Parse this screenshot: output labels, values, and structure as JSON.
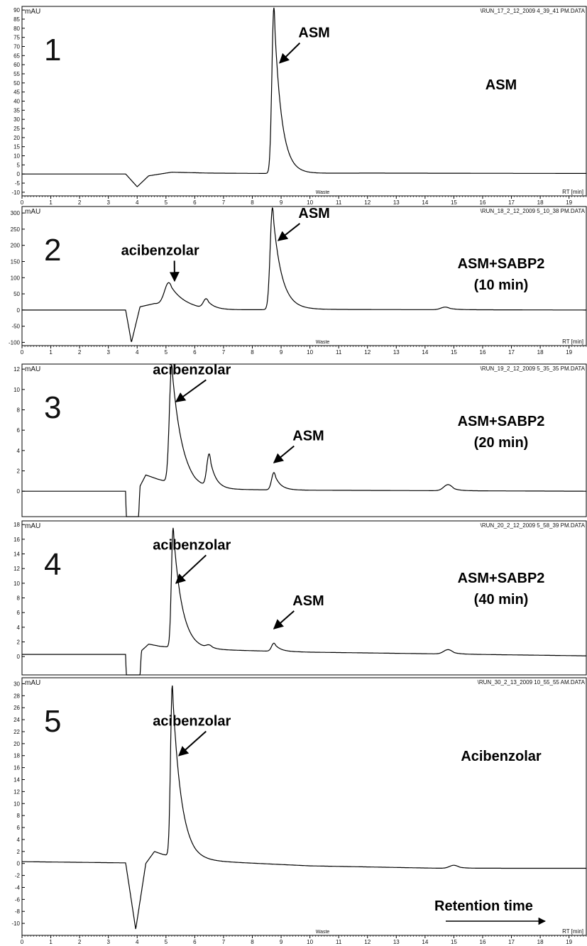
{
  "chart_data": [
    {
      "type": "line",
      "panel_number": "1",
      "y_unit": "mAU",
      "file_label": "\\RUN_17_2_12_2009 4_39_41 PM.DATA",
      "x_axis_label": "RT [min]",
      "detector_label": "Waste",
      "condition": "ASM",
      "condition_lines": [
        "ASM"
      ],
      "xlim": [
        0,
        19.6
      ],
      "ylim": [
        -12,
        92
      ],
      "y_ticks": [
        -10,
        -5,
        0,
        5,
        10,
        15,
        20,
        25,
        30,
        35,
        40,
        45,
        50,
        55,
        60,
        65,
        70,
        75,
        80,
        85,
        90
      ],
      "trace": {
        "baseline": [
          [
            0,
            0
          ],
          [
            3.6,
            0
          ],
          [
            4.0,
            -7
          ],
          [
            4.4,
            -1
          ],
          [
            5.2,
            1
          ],
          [
            6.5,
            0.5
          ],
          [
            8.5,
            0.3
          ],
          [
            12,
            0.5
          ],
          [
            19.6,
            0.3
          ]
        ],
        "peaks": [
          {
            "rt": 8.75,
            "height": 91,
            "width_left": 0.07,
            "width_right": 0.25
          }
        ]
      },
      "annotations": [
        {
          "label": "ASM",
          "x": 9.6,
          "y": 75,
          "ax": 8.95,
          "ay": 61
        }
      ]
    },
    {
      "type": "line",
      "panel_number": "2",
      "y_unit": "mAU",
      "file_label": "\\RUN_18_2_12_2009 5_10_38 PM.DATA",
      "x_axis_label": "RT [min]",
      "detector_label": "Waste",
      "condition": "ASM+SABP2 (10 min)",
      "condition_lines": [
        "ASM+SABP2",
        "(10 min)"
      ],
      "xlim": [
        0,
        19.6
      ],
      "ylim": [
        -110,
        320
      ],
      "y_ticks": [
        -100,
        -50,
        0,
        50,
        100,
        150,
        200,
        250,
        300
      ],
      "trace": {
        "baseline": [
          [
            0,
            0
          ],
          [
            3.6,
            0
          ],
          [
            3.8,
            -100
          ],
          [
            4.1,
            10
          ],
          [
            4.6,
            20
          ],
          [
            6.5,
            0
          ],
          [
            10,
            2
          ],
          [
            19.6,
            0
          ]
        ],
        "peaks": [
          {
            "rt": 5.1,
            "height": 70,
            "width_left": 0.15,
            "width_right": 0.45
          },
          {
            "rt": 6.4,
            "height": 30,
            "width_left": 0.1,
            "width_right": 0.25
          },
          {
            "rt": 8.7,
            "height": 315,
            "width_left": 0.08,
            "width_right": 0.3
          },
          {
            "rt": 14.7,
            "height": 8,
            "width_left": 0.15,
            "width_right": 0.25
          }
        ]
      },
      "annotations": [
        {
          "label": "acibenzolar",
          "x": 4.8,
          "y": 170,
          "ax": 5.3,
          "ay": 90
        },
        {
          "label": "ASM",
          "x": 9.6,
          "y": 285,
          "ax": 8.9,
          "ay": 215
        }
      ]
    },
    {
      "type": "line",
      "panel_number": "3",
      "y_unit": "mAU",
      "file_label": "\\RUN_19_2_12_2009 5_35_35 PM.DATA",
      "x_axis_label": "",
      "detector_label": "",
      "condition": "ASM+SABP2 (20 min)",
      "condition_lines": [
        "ASM+SABP2",
        "(20 min)"
      ],
      "xlim": [
        0,
        19.6
      ],
      "ylim": [
        -2.5,
        12.5
      ],
      "y_ticks": [
        0,
        2,
        4,
        6,
        8,
        10,
        12
      ],
      "trace": {
        "baseline": [
          [
            0,
            0
          ],
          [
            3.6,
            0
          ],
          [
            3.62,
            -2.5
          ],
          [
            4.05,
            -2.5
          ],
          [
            4.1,
            0.5
          ],
          [
            4.3,
            1.6
          ],
          [
            4.7,
            1.2
          ],
          [
            6,
            0.2
          ],
          [
            10,
            0.1
          ],
          [
            19.6,
            0
          ]
        ],
        "peaks": [
          {
            "rt": 5.2,
            "height": 11.6,
            "width_left": 0.08,
            "width_right": 0.35
          },
          {
            "rt": 6.5,
            "height": 3.2,
            "width_left": 0.08,
            "width_right": 0.2
          },
          {
            "rt": 8.75,
            "height": 1.7,
            "width_left": 0.08,
            "width_right": 0.2
          },
          {
            "rt": 14.8,
            "height": 0.6,
            "width_left": 0.15,
            "width_right": 0.2
          }
        ]
      },
      "annotations": [
        {
          "label": "acibenzolar",
          "x": 5.9,
          "y": 11.5,
          "ax": 5.35,
          "ay": 8.8
        },
        {
          "label": "ASM",
          "x": 9.4,
          "y": 5.0,
          "ax": 8.75,
          "ay": 2.8
        }
      ]
    },
    {
      "type": "line",
      "panel_number": "4",
      "y_unit": "mAU",
      "file_label": "\\RUN_20_2_12_2009 5_58_39 PM.DATA",
      "x_axis_label": "",
      "detector_label": "",
      "condition": "ASM+SABP2 (40 min)",
      "condition_lines": [
        "ASM+SABP2",
        "(40 min)"
      ],
      "xlim": [
        0,
        19.6
      ],
      "ylim": [
        -2.5,
        18.5
      ],
      "y_ticks": [
        0,
        2,
        4,
        6,
        8,
        10,
        12,
        14,
        16,
        18
      ],
      "trace": {
        "baseline": [
          [
            0,
            0.3
          ],
          [
            3.6,
            0.3
          ],
          [
            3.62,
            -2.5
          ],
          [
            4.1,
            -2.5
          ],
          [
            4.15,
            0.8
          ],
          [
            4.4,
            1.7
          ],
          [
            4.8,
            1.4
          ],
          [
            6,
            1.0
          ],
          [
            10,
            0.6
          ],
          [
            19.6,
            0.1
          ]
        ],
        "peaks": [
          {
            "rt": 5.25,
            "height": 16.3,
            "width_left": 0.06,
            "width_right": 0.3
          },
          {
            "rt": 6.5,
            "height": 0.4,
            "width_left": 0.1,
            "width_right": 0.15
          },
          {
            "rt": 8.75,
            "height": 1.1,
            "width_left": 0.08,
            "width_right": 0.2
          },
          {
            "rt": 14.8,
            "height": 0.6,
            "width_left": 0.15,
            "width_right": 0.2
          }
        ]
      },
      "annotations": [
        {
          "label": "acibenzolar",
          "x": 5.9,
          "y": 14.6,
          "ax": 5.35,
          "ay": 10.0
        },
        {
          "label": "ASM",
          "x": 9.4,
          "y": 7.0,
          "ax": 8.75,
          "ay": 3.8
        }
      ]
    },
    {
      "type": "line",
      "panel_number": "5",
      "y_unit": "mAU",
      "file_label": "\\RUN_30_2_13_2009 10_55_55 AM.DATA",
      "x_axis_label": "RT [min]",
      "detector_label": "Waste",
      "condition": "Acibenzolar",
      "condition_lines": [
        "Acibenzolar"
      ],
      "xlim": [
        0,
        19.6
      ],
      "ylim": [
        -12,
        31
      ],
      "y_ticks": [
        -10,
        -8,
        -6,
        -4,
        -2,
        0,
        2,
        4,
        6,
        8,
        10,
        12,
        14,
        16,
        18,
        20,
        22,
        24,
        26,
        28,
        30
      ],
      "trace": {
        "baseline": [
          [
            0,
            0.3
          ],
          [
            3.6,
            0.1
          ],
          [
            3.95,
            -11
          ],
          [
            4.3,
            0
          ],
          [
            4.6,
            2
          ],
          [
            4.9,
            1.5
          ],
          [
            6,
            0.5
          ],
          [
            10,
            -0.4
          ],
          [
            14.5,
            -0.8
          ],
          [
            19.6,
            -0.8
          ]
        ],
        "peaks": [
          {
            "rt": 5.22,
            "height": 28.5,
            "width_left": 0.06,
            "width_right": 0.3
          },
          {
            "rt": 15.0,
            "height": 0.5,
            "width_left": 0.15,
            "width_right": 0.2
          }
        ]
      },
      "annotations": [
        {
          "label": "acibenzolar",
          "x": 5.9,
          "y": 23,
          "ax": 5.45,
          "ay": 18
        }
      ]
    }
  ],
  "x_ticks": [
    0,
    1,
    2,
    3,
    4,
    5,
    6,
    7,
    8,
    9,
    10,
    11,
    12,
    13,
    14,
    15,
    16,
    17,
    18,
    19
  ],
  "retention_time_label": "Retention time"
}
